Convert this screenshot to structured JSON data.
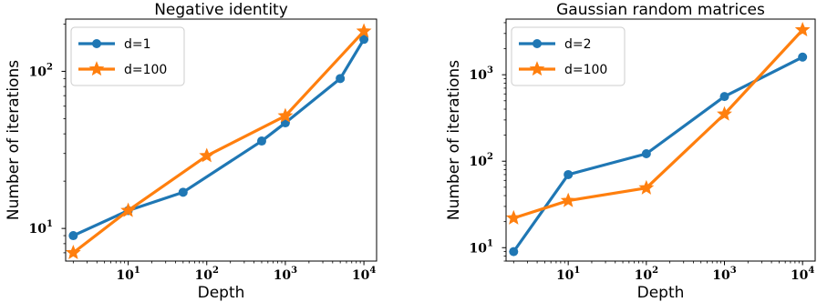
{
  "colors": {
    "blue": "#1f77b4",
    "orange": "#ff7f0e",
    "axis": "#000000",
    "legend_border": "#cccccc"
  },
  "chart_data": [
    {
      "type": "line",
      "title": "Negative identity",
      "xlabel": "Depth",
      "ylabel": "Number of iterations",
      "xscale": "log",
      "yscale": "log",
      "xlim": [
        1.6,
        14500
      ],
      "ylim": [
        6.2,
        215
      ],
      "xticks": [
        {
          "base": "10",
          "exp": "1"
        },
        {
          "base": "10",
          "exp": "2"
        },
        {
          "base": "10",
          "exp": "3"
        },
        {
          "base": "10",
          "exp": "4"
        }
      ],
      "yticks": [
        {
          "base": "10",
          "exp": "1"
        },
        {
          "base": "10",
          "exp": "2"
        }
      ],
      "legend_position": "upper-left",
      "series": [
        {
          "name": "d=1",
          "color": "#1f77b4",
          "marker": "circle",
          "x": [
            2,
            10,
            50,
            500,
            1000,
            5000,
            10000
          ],
          "y": [
            9,
            13,
            17,
            36,
            47,
            90,
            160
          ]
        },
        {
          "name": "d=100",
          "color": "#ff7f0e",
          "marker": "star",
          "x": [
            2,
            10,
            100,
            1000,
            10000
          ],
          "y": [
            7,
            13,
            29,
            52,
            180
          ]
        }
      ]
    },
    {
      "type": "line",
      "title": "Gaussian random matrices",
      "xlabel": "Depth",
      "ylabel": "Number of iterations",
      "xscale": "log",
      "yscale": "log",
      "xlim": [
        1.6,
        14500
      ],
      "ylim": [
        7,
        4400
      ],
      "xticks": [
        {
          "base": "10",
          "exp": "1"
        },
        {
          "base": "10",
          "exp": "2"
        },
        {
          "base": "10",
          "exp": "3"
        },
        {
          "base": "10",
          "exp": "4"
        }
      ],
      "yticks": [
        {
          "base": "10",
          "exp": "1"
        },
        {
          "base": "10",
          "exp": "2"
        },
        {
          "base": "10",
          "exp": "3"
        }
      ],
      "legend_position": "upper-left",
      "series": [
        {
          "name": "d=2",
          "color": "#1f77b4",
          "marker": "circle",
          "x": [
            2,
            10,
            100,
            1000,
            10000
          ],
          "y": [
            9,
            70,
            122,
            560,
            1600
          ]
        },
        {
          "name": "d=100",
          "color": "#ff7f0e",
          "marker": "star",
          "x": [
            2,
            10,
            100,
            1000,
            10000
          ],
          "y": [
            22,
            35,
            49,
            350,
            3300
          ]
        }
      ]
    }
  ]
}
